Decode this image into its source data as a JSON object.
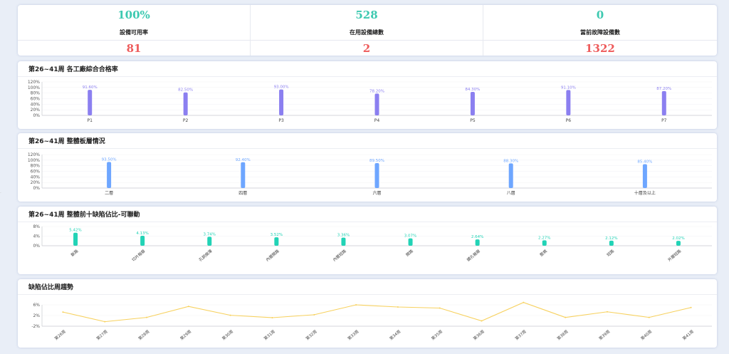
{
  "kpis": {
    "top": [
      {
        "value": "100%",
        "label": "設備可用率"
      },
      {
        "value": "528",
        "label": "在用設備總數"
      },
      {
        "value": "0",
        "label": "當前故障設備數"
      }
    ],
    "bottom": [
      {
        "value": "81"
      },
      {
        "value": "2"
      },
      {
        "value": "1322"
      }
    ]
  },
  "colors": {
    "kpi_top": "#3dc9b0",
    "kpi_bottom": "#ee5c5c",
    "chart1_bar": "#8b7ff0",
    "chart2_bar": "#6ea6ff",
    "chart3_bar": "#22d3b6",
    "chart4_line": "#f7d15e"
  },
  "side_mark": "·",
  "chart_data": [
    {
      "type": "bar",
      "title": "第26~41周 各工廠綜合合格率",
      "categories": [
        "P1",
        "P2",
        "P3",
        "P4",
        "P5",
        "P6",
        "P7"
      ],
      "values": [
        91.6,
        82.5,
        93.0,
        78.2,
        84.3,
        91.1,
        87.2
      ],
      "value_labels": [
        "91.60%",
        "82.50%",
        "93.00%",
        "78.20%",
        "84.30%",
        "91.10%",
        "87.20%"
      ],
      "yticks": [
        "0%",
        "20%",
        "40%",
        "60%",
        "80%",
        "100%",
        "120%"
      ],
      "ylim": [
        0,
        120
      ],
      "xlabel": "",
      "ylabel": ""
    },
    {
      "type": "bar",
      "title": "第26~41周 整體板層情況",
      "categories": [
        "二層",
        "四層",
        "六層",
        "八層",
        "十層及以上"
      ],
      "values": [
        93.5,
        92.4,
        89.5,
        88.3,
        85.4
      ],
      "value_labels": [
        "93.50%",
        "92.40%",
        "89.50%",
        "88.30%",
        "85.40%"
      ],
      "yticks": [
        "0%",
        "20%",
        "40%",
        "60%",
        "80%",
        "100%",
        "120%"
      ],
      "ylim": [
        0,
        120
      ],
      "xlabel": "",
      "ylabel": ""
    },
    {
      "type": "bar",
      "title": "第26~41周 整體前十缺陷佔比-可聯動",
      "categories": [
        "斷路",
        "切片報廢",
        "孔銅偏薄",
        "內層開路",
        "內層短路",
        "開路",
        "鑽孔報廢",
        "壓痕",
        "短路",
        "外層短路"
      ],
      "values": [
        5.42,
        4.13,
        3.74,
        3.52,
        3.36,
        3.07,
        2.64,
        2.27,
        2.12,
        2.02
      ],
      "value_labels": [
        "5.42%",
        "4.13%",
        "3.74%",
        "3.52%",
        "3.36%",
        "3.07%",
        "2.64%",
        "2.27%",
        "2.12%",
        "2.02%"
      ],
      "yticks": [
        "0%",
        "4%",
        "8%"
      ],
      "ylim": [
        0,
        8
      ],
      "xlabel": "",
      "ylabel": ""
    },
    {
      "type": "line",
      "title": "缺陷佔比周趨勢",
      "categories": [
        "第26周",
        "第27周",
        "第28周",
        "第29周",
        "第30周",
        "第31周",
        "第32周",
        "第33周",
        "第34周",
        "第35周",
        "第36周",
        "第37周",
        "第38周",
        "第39周",
        "第40周",
        "第41周"
      ],
      "values": [
        3.3,
        -0.3,
        1.3,
        5.4,
        2.1,
        1.2,
        2.3,
        6.0,
        5.2,
        4.8,
        0.0,
        6.9,
        1.3,
        3.4,
        1.3,
        5.0
      ],
      "yticks": [
        "-2%",
        "2%",
        "6%"
      ],
      "ylim": [
        -2,
        6
      ],
      "xlabel": "",
      "ylabel": ""
    }
  ]
}
